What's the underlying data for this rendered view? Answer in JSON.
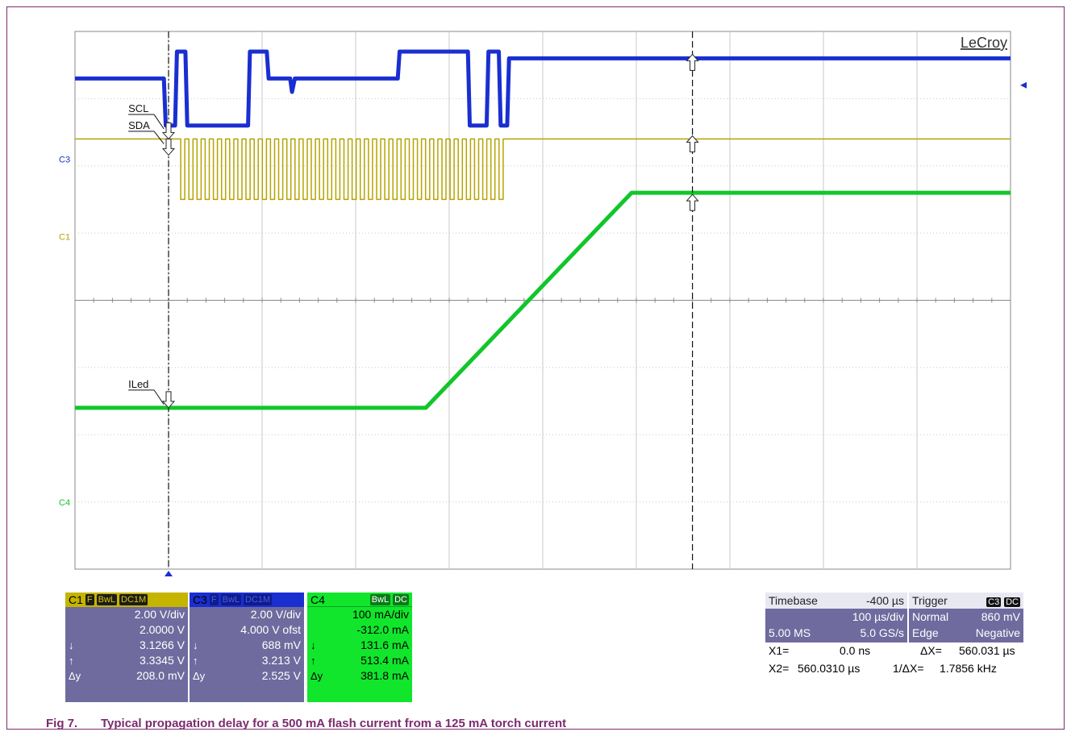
{
  "chart_data": {
    "type": "line",
    "brand": "LeCroy",
    "grid": {
      "x_divisions": 10,
      "y_divisions": 8
    },
    "channel_markers": [
      "C3",
      "C1",
      "C4"
    ],
    "annotations": [
      "SCL",
      "SDA",
      "ILed"
    ],
    "series": [
      {
        "name": "C3",
        "color": "#1a2fd0",
        "points_div": [
          [
            0,
            0.7
          ],
          [
            0.95,
            0.7
          ],
          [
            0.97,
            1.4
          ],
          [
            1.07,
            1.4
          ],
          [
            1.09,
            0.3
          ],
          [
            1.18,
            0.3
          ],
          [
            1.2,
            1.4
          ],
          [
            1.85,
            1.4
          ],
          [
            1.87,
            0.3
          ],
          [
            2.05,
            0.3
          ],
          [
            2.07,
            0.7
          ],
          [
            2.3,
            0.7
          ],
          [
            2.32,
            0.9
          ],
          [
            2.35,
            0.7
          ],
          [
            3.45,
            0.7
          ],
          [
            3.47,
            0.3
          ],
          [
            4.2,
            0.3
          ],
          [
            4.22,
            1.4
          ],
          [
            4.4,
            1.4
          ],
          [
            4.42,
            0.3
          ],
          [
            4.53,
            0.3
          ],
          [
            4.55,
            1.4
          ],
          [
            4.62,
            1.4
          ],
          [
            4.64,
            0.4
          ],
          [
            10,
            0.4
          ]
        ]
      },
      {
        "name": "C1",
        "color": "#b5a400",
        "points_div": [
          [
            0,
            1.6
          ],
          [
            1.1,
            1.6
          ],
          [
            1.15,
            1.6
          ],
          [
            1.15,
            2.5
          ],
          [
            4.62,
            2.5
          ],
          [
            4.64,
            1.6
          ],
          [
            10,
            1.6
          ]
        ]
      },
      {
        "name": "C4",
        "color": "#11c62a",
        "points_div": [
          [
            0,
            5.6
          ],
          [
            3.75,
            5.6
          ],
          [
            5.95,
            2.4
          ],
          [
            10,
            2.4
          ]
        ]
      }
    ],
    "cursors": [
      {
        "name": "X1",
        "x_div": 1.0
      },
      {
        "name": "X2",
        "x_div": 6.6
      }
    ],
    "reference_line_y_div": 4.0
  },
  "channels": {
    "c1": {
      "name": "C1",
      "tags": [
        "F",
        "BwL",
        "DC1M"
      ],
      "vdiv": "2.00 V/div",
      "offset": "2.0000 V",
      "down_label": "↓",
      "down": "3.1266 V",
      "up_label": "↑",
      "up": "3.3345 V",
      "dy_label": "Δy",
      "dy": "208.0 mV"
    },
    "c3": {
      "name": "C3",
      "tags": [
        "F",
        "BwL",
        "DC1M"
      ],
      "vdiv": "2.00 V/div",
      "offset": "4.000 V ofst",
      "down_label": "↓",
      "down": "688 mV",
      "up_label": "↑",
      "up": "3.213 V",
      "dy_label": "Δy",
      "dy": "2.525 V"
    },
    "c4": {
      "name": "C4",
      "tags": [
        "BwL",
        "DC"
      ],
      "vdiv": "100 mA/div",
      "offset": "-312.0 mA",
      "down_label": "↓",
      "down": "131.6 mA",
      "up_label": "↑",
      "up": "513.4 mA",
      "dy_label": "Δy",
      "dy": "381.8 mA"
    }
  },
  "timebase": {
    "label": "Timebase",
    "delay": "-400 µs",
    "tdiv": "100 µs/div",
    "samples": "5.00 MS",
    "rate": "5.0 GS/s"
  },
  "trigger": {
    "label": "Trigger",
    "tags": [
      "C3",
      "DC"
    ],
    "mode": "Normal",
    "level": "860 mV",
    "type": "Edge",
    "slope": "Negative"
  },
  "cursor_readout": {
    "x1_label": "X1=",
    "x1": "0.0 ns",
    "dx_label": "ΔX=",
    "dx": "560.031 µs",
    "x2_label": "X2=",
    "x2": "560.0310 µs",
    "inv_label": "1/ΔX=",
    "inv": "1.7856 kHz"
  },
  "caption": {
    "number": "Fig 7.",
    "text": "Typical propagation delay for a 500 mA flash current from a 125 mA torch current"
  }
}
